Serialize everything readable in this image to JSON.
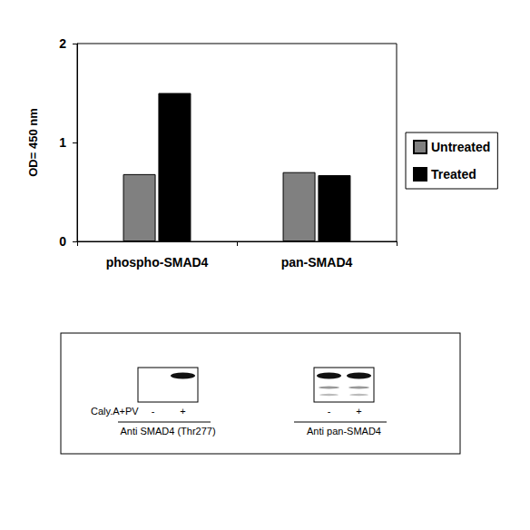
{
  "chart_data": {
    "type": "bar",
    "y_label": "OD= 450 nm",
    "categories": [
      "phospho-SMAD4",
      "pan-SMAD4"
    ],
    "series": [
      {
        "name": "Untreated",
        "color": "#808080",
        "values": [
          0.68,
          0.7
        ]
      },
      {
        "name": "Treated",
        "color": "#000000",
        "values": [
          1.5,
          0.67
        ]
      }
    ],
    "ylim": [
      0,
      2
    ],
    "yticks": [
      0,
      1,
      2
    ],
    "grid": false,
    "legend": "right"
  },
  "blot": {
    "treatment_label": "Caly.A+PV",
    "panels": [
      {
        "antibody": "Anti SMAD4 (Thr277)",
        "lanes": [
          "-",
          "+"
        ],
        "bands": [
          false,
          true
        ]
      },
      {
        "antibody": "Anti pan-SMAD4",
        "lanes": [
          "-",
          "+"
        ],
        "bands": [
          true,
          true
        ]
      }
    ]
  }
}
